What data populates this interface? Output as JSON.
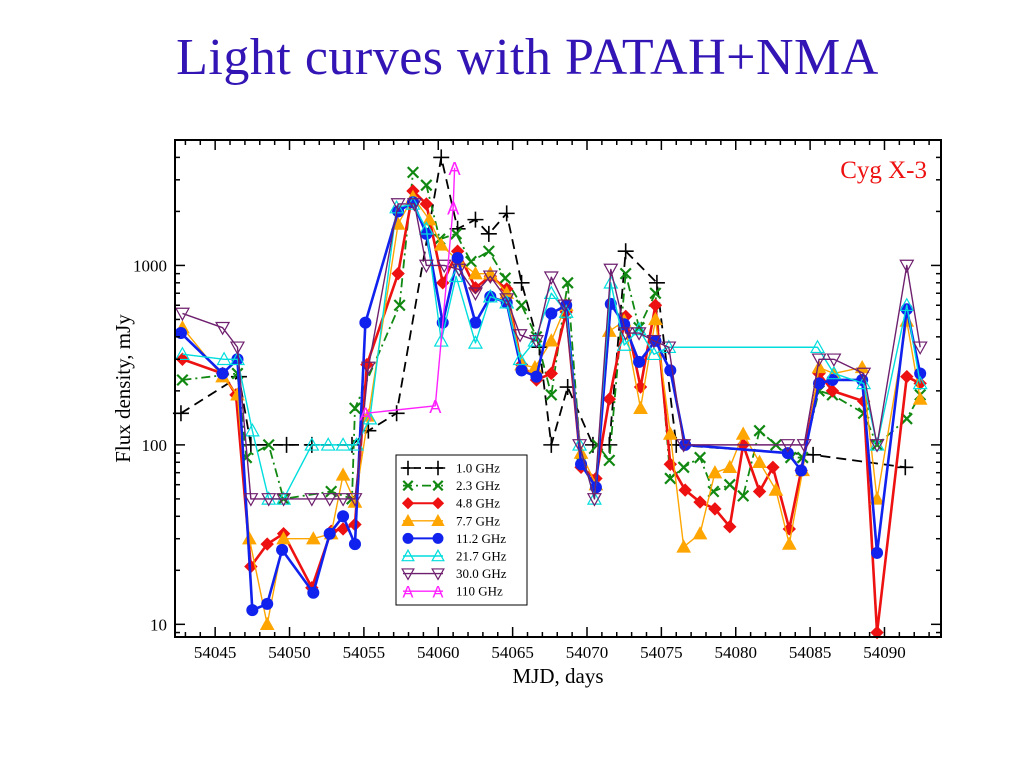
{
  "slide": {
    "title": "Light curves  with  PATAH+NMA"
  },
  "chart_data": {
    "type": "line",
    "title": "",
    "annotation": "Cyg X-3",
    "annotation_color": "#ee1111",
    "xlabel": "MJD,  days",
    "ylabel": "Flux density, mJy",
    "xlim": [
      54042.3,
      54093.8
    ],
    "ylim": [
      8.5,
      5000
    ],
    "yscale": "log",
    "xticks": [
      54045,
      54050,
      54055,
      54060,
      54065,
      54070,
      54075,
      54080,
      54085,
      54090
    ],
    "xtick_labels": [
      "54045",
      "54050",
      "54055",
      "54060",
      "54065",
      "54070",
      "54075",
      "54080",
      "54085",
      "54090"
    ],
    "yticks": [
      10,
      100,
      1000
    ],
    "ytick_labels": [
      "10",
      "100",
      "1000"
    ],
    "grid": false,
    "legend_position": "lower-left",
    "series": [
      {
        "name": "1.0 GHz",
        "color": "#000000",
        "marker": "plus",
        "dash": "10,6",
        "width": 1.8,
        "x": [
          54042.7,
          54046.6,
          54047.4,
          54049.8,
          54051.5,
          54054.2,
          54055.3,
          54057.2,
          54060.2,
          54061.3,
          54062.5,
          54063.4,
          54064.6,
          54065.6,
          54066.8,
          54067.6,
          54068.7,
          54070.4,
          54071.5,
          54072.6,
          54074.7,
          54076.0,
          54085.2,
          54091.4
        ],
        "y": [
          150,
          240,
          100,
          100,
          100,
          100,
          120,
          150,
          4000,
          1600,
          1800,
          1500,
          1950,
          800,
          350,
          100,
          210,
          100,
          100,
          1200,
          800,
          100,
          88,
          75
        ]
      },
      {
        "name": "2.3 GHz",
        "color": "#118811",
        "marker": "x",
        "dash": "9,4,2,4",
        "width": 1.8,
        "x": [
          54042.8,
          54046.5,
          54047.1,
          54048.6,
          54049.6,
          54052.8,
          54054.2,
          54054.4,
          54057.4,
          54058.3,
          54059.2,
          54060.1,
          54061.2,
          54062.2,
          54063.4,
          54064.5,
          54065.6,
          54066.6,
          54067.6,
          54068.7,
          54069.6,
          54070.7,
          54071.5,
          54072.6,
          54073.5,
          54074.6,
          54075.6,
          54076.5,
          54077.6,
          54078.5,
          54079.6,
          54080.5,
          54081.6,
          54082.7,
          54083.7,
          54084.5,
          54085.6,
          54086.5,
          54088.6,
          54089.5,
          54091.5,
          54092.4
        ],
        "y": [
          230,
          250,
          85,
          100,
          50,
          55,
          50,
          160,
          600,
          3300,
          2800,
          1400,
          1500,
          1050,
          1200,
          850,
          600,
          400,
          190,
          800,
          80,
          100,
          82,
          900,
          450,
          700,
          65,
          75,
          85,
          55,
          60,
          52,
          120,
          100,
          85,
          85,
          200,
          190,
          150,
          100,
          140,
          190
        ]
      },
      {
        "name": "4.8 GHz",
        "color": "#ee1111",
        "marker": "diamond",
        "dash": "",
        "width": 2.6,
        "x": [
          54042.8,
          54045.5,
          54046.4,
          54047.4,
          54048.5,
          54049.6,
          54051.5,
          54052.8,
          54053.6,
          54054.4,
          54055.2,
          54057.3,
          54058.3,
          54059.2,
          54060.3,
          54061.3,
          54062.5,
          54063.5,
          54064.6,
          54065.6,
          54066.6,
          54067.6,
          54068.6,
          54069.6,
          54070.6,
          54071.5,
          54072.6,
          54073.6,
          54074.6,
          54075.6,
          54076.6,
          54077.6,
          54078.6,
          54079.6,
          54080.5,
          54081.6,
          54082.5,
          54083.6,
          54084.4,
          54085.6,
          54086.5,
          54088.6,
          54089.5,
          54091.5,
          54092.4
        ],
        "y": [
          300,
          250,
          190,
          21,
          28,
          32,
          16,
          33,
          34,
          36,
          280,
          900,
          2600,
          2200,
          800,
          1200,
          750,
          870,
          740,
          280,
          230,
          250,
          550,
          75,
          65,
          180,
          520,
          210,
          600,
          78,
          56,
          48,
          44,
          35,
          100,
          55,
          75,
          34,
          72,
          250,
          200,
          175,
          9,
          240,
          220
        ]
      },
      {
        "name": "7.7 GHz",
        "color": "#ffa500",
        "marker": "triangle-up",
        "dash": "",
        "width": 1.4,
        "x": [
          54042.8,
          54045.5,
          54046.5,
          54047.3,
          54048.5,
          54049.6,
          54051.6,
          54052.8,
          54053.6,
          54054.4,
          54055.3,
          54057.3,
          54058.3,
          54059.4,
          54060.2,
          54061.4,
          54062.5,
          54063.5,
          54064.6,
          54065.6,
          54066.5,
          54067.6,
          54068.6,
          54069.6,
          54070.6,
          54071.5,
          54072.5,
          54073.6,
          54074.6,
          54075.6,
          54076.5,
          54077.6,
          54078.6,
          54079.6,
          54080.5,
          54081.6,
          54082.7,
          54083.6,
          54084.5,
          54085.6,
          54086.6,
          54088.5,
          54089.5,
          54091.5,
          54092.4
        ],
        "y": [
          450,
          240,
          190,
          30,
          10,
          30,
          30,
          32,
          68,
          48,
          145,
          1700,
          2400,
          1800,
          1300,
          1050,
          900,
          900,
          700,
          280,
          270,
          380,
          600,
          90,
          60,
          430,
          490,
          160,
          500,
          115,
          27,
          32,
          70,
          75,
          115,
          80,
          56,
          28,
          72,
          270,
          250,
          270,
          50,
          490,
          180
        ]
      },
      {
        "name": "11.2 GHz",
        "color": "#1122ee",
        "marker": "circle",
        "dash": "",
        "width": 2.6,
        "x": [
          54042.7,
          54045.5,
          54046.5,
          54047.5,
          54048.5,
          54049.5,
          54051.6,
          54052.7,
          54053.6,
          54054.4,
          54055.1,
          54057.3,
          54058.3,
          54059.2,
          54060.3,
          54061.3,
          54062.5,
          54063.5,
          54064.6,
          54065.6,
          54066.6,
          54067.6,
          54068.6,
          54069.6,
          54070.6,
          54071.6,
          54072.5,
          54073.5,
          54074.6,
          54075.6,
          54076.6,
          54083.5,
          54084.4,
          54085.6,
          54086.5,
          54088.5,
          54089.5,
          54091.5,
          54092.4
        ],
        "y": [
          420,
          250,
          300,
          12,
          13,
          26,
          15,
          32,
          40,
          28,
          480,
          2000,
          2250,
          1500,
          480,
          1100,
          480,
          670,
          620,
          260,
          240,
          540,
          600,
          78,
          58,
          610,
          470,
          290,
          380,
          260,
          100,
          90,
          72,
          220,
          230,
          230,
          25,
          570,
          250
        ]
      },
      {
        "name": "21.7 GHz",
        "color": "#00dddd",
        "marker": "triangle-up-open",
        "dash": "",
        "width": 1.4,
        "x": [
          54042.8,
          54045.6,
          54046.5,
          54047.5,
          54048.6,
          54049.6,
          54051.5,
          54052.6,
          54053.6,
          54054.5,
          54055.4,
          54057.2,
          54058.3,
          54059.2,
          54060.2,
          54061.2,
          54062.5,
          54063.5,
          54064.6,
          54065.5,
          54066.5,
          54067.6,
          54068.6,
          54069.5,
          54070.5,
          54071.6,
          54072.5,
          54073.5,
          54074.5,
          54075.5,
          54085.5,
          54086.6,
          54088.6,
          54089.5,
          54091.5,
          54092.4
        ],
        "y": [
          320,
          300,
          300,
          120,
          50,
          50,
          100,
          100,
          100,
          100,
          140,
          2100,
          2200,
          1600,
          380,
          870,
          370,
          670,
          620,
          300,
          380,
          700,
          550,
          100,
          50,
          800,
          360,
          440,
          320,
          350,
          350,
          250,
          220,
          100,
          600,
          220
        ]
      },
      {
        "name": "30.0 GHz",
        "color": "#6e1f6e",
        "marker": "triangle-down-open",
        "dash": "",
        "width": 1.4,
        "x": [
          54042.8,
          54045.5,
          54046.5,
          54047.4,
          54048.6,
          54049.6,
          54051.5,
          54052.7,
          54053.6,
          54054.4,
          54055.3,
          54057.3,
          54058.4,
          54059.2,
          54060.4,
          54061.4,
          54062.5,
          54063.5,
          54064.6,
          54065.5,
          54066.6,
          54067.6,
          54068.5,
          54069.5,
          54070.5,
          54071.6,
          54072.6,
          54073.5,
          54074.5,
          54075.5,
          54076.5,
          54083.5,
          54084.6,
          54085.6,
          54086.6,
          54088.6,
          54089.5,
          54091.5,
          54092.4
        ],
        "y": [
          540,
          450,
          350,
          50,
          50,
          50,
          50,
          50,
          50,
          50,
          270,
          2200,
          2200,
          1000,
          1000,
          950,
          700,
          870,
          650,
          410,
          380,
          860,
          600,
          100,
          50,
          950,
          420,
          420,
          380,
          350,
          100,
          100,
          100,
          300,
          300,
          250,
          100,
          1000,
          350
        ]
      },
      {
        "name": "110 GHz",
        "color": "#ff22ff",
        "marker": "letter-A",
        "dash": "",
        "width": 1.4,
        "x": [
          54055.1,
          54059.8,
          54061.0,
          54061.1
        ],
        "y": [
          150,
          165,
          2100,
          3500
        ]
      }
    ]
  }
}
